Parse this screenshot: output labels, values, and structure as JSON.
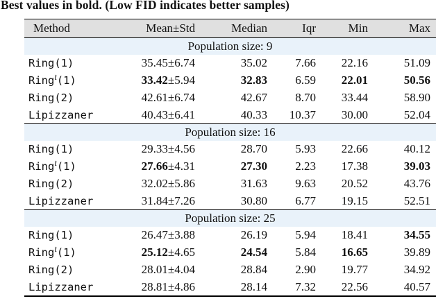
{
  "caption": "Best values in bold. (Low FID indicates better samples)",
  "colors": {
    "header_bg": "#e0e0e0",
    "section_bg": "#e9f2fa",
    "rule": "#000000",
    "text": "#111111"
  },
  "table": {
    "columns": [
      "Method",
      "Mean±Std",
      "Median",
      "Iqr",
      "Min",
      "Max"
    ],
    "sections": [
      {
        "title": "Population size: 9",
        "rows": [
          {
            "pre": "Ring(1)",
            "sup": "",
            "post": "",
            "mean": "35.45",
            "std": "±6.74",
            "median": "35.02",
            "iqr": "7.66",
            "min": "22.16",
            "max": "51.09",
            "bold": []
          },
          {
            "pre": "Ring",
            "sup": "t",
            "post": "(1)",
            "mean": "33.42",
            "std": "±5.94",
            "median": "32.83",
            "iqr": "6.59",
            "min": "22.01",
            "max": "50.56",
            "bold": [
              "mean",
              "median",
              "min",
              "max"
            ]
          },
          {
            "pre": "Ring(2)",
            "sup": "",
            "post": "",
            "mean": "42.61",
            "std": "±6.74",
            "median": "42.67",
            "iqr": "8.70",
            "min": "33.44",
            "max": "58.90",
            "bold": []
          },
          {
            "pre": "Lipizzaner",
            "sup": "",
            "post": "",
            "mean": "40.43",
            "std": "±6.41",
            "median": "40.33",
            "iqr": "10.37",
            "min": "30.00",
            "max": "52.04",
            "bold": []
          }
        ]
      },
      {
        "title": "Population size: 16",
        "rows": [
          {
            "pre": "Ring(1)",
            "sup": "",
            "post": "",
            "mean": "29.33",
            "std": "±4.56",
            "median": "28.70",
            "iqr": "5.93",
            "min": "22.66",
            "max": "40.12",
            "bold": []
          },
          {
            "pre": "Ring",
            "sup": "t",
            "post": "(1)",
            "mean": "27.66",
            "std": "±4.31",
            "median": "27.30",
            "iqr": "2.23",
            "min": "17.38",
            "max": "39.03",
            "bold": [
              "mean",
              "median",
              "max"
            ]
          },
          {
            "pre": "Ring(2)",
            "sup": "",
            "post": "",
            "mean": "32.02",
            "std": "±5.86",
            "median": "31.63",
            "iqr": "9.63",
            "min": "20.52",
            "max": "43.76",
            "bold": []
          },
          {
            "pre": "Lipizzaner",
            "sup": "",
            "post": "",
            "mean": "31.84",
            "std": "±7.26",
            "median": "30.80",
            "iqr": "6.77",
            "min": "19.15",
            "max": "52.51",
            "bold": []
          }
        ]
      },
      {
        "title": "Population size: 25",
        "rows": [
          {
            "pre": "Ring(1)",
            "sup": "",
            "post": "",
            "mean": "26.47",
            "std": "±3.88",
            "median": "26.19",
            "iqr": "5.94",
            "min": "18.41",
            "max": "34.55",
            "bold": [
              "max"
            ]
          },
          {
            "pre": "Ring",
            "sup": "t",
            "post": "(1)",
            "mean": "25.12",
            "std": "±4.65",
            "median": "24.54",
            "iqr": "5.84",
            "min": "16.65",
            "max": "39.89",
            "bold": [
              "mean",
              "median",
              "min"
            ]
          },
          {
            "pre": "Ring(2)",
            "sup": "",
            "post": "",
            "mean": "28.01",
            "std": "±4.04",
            "median": "28.84",
            "iqr": "2.90",
            "min": "19.77",
            "max": "34.92",
            "bold": []
          },
          {
            "pre": "Lipizzaner",
            "sup": "",
            "post": "",
            "mean": "28.81",
            "std": "±4.86",
            "median": "28.14",
            "iqr": "7.32",
            "min": "22.56",
            "max": "40.57",
            "bold": []
          }
        ]
      }
    ]
  }
}
